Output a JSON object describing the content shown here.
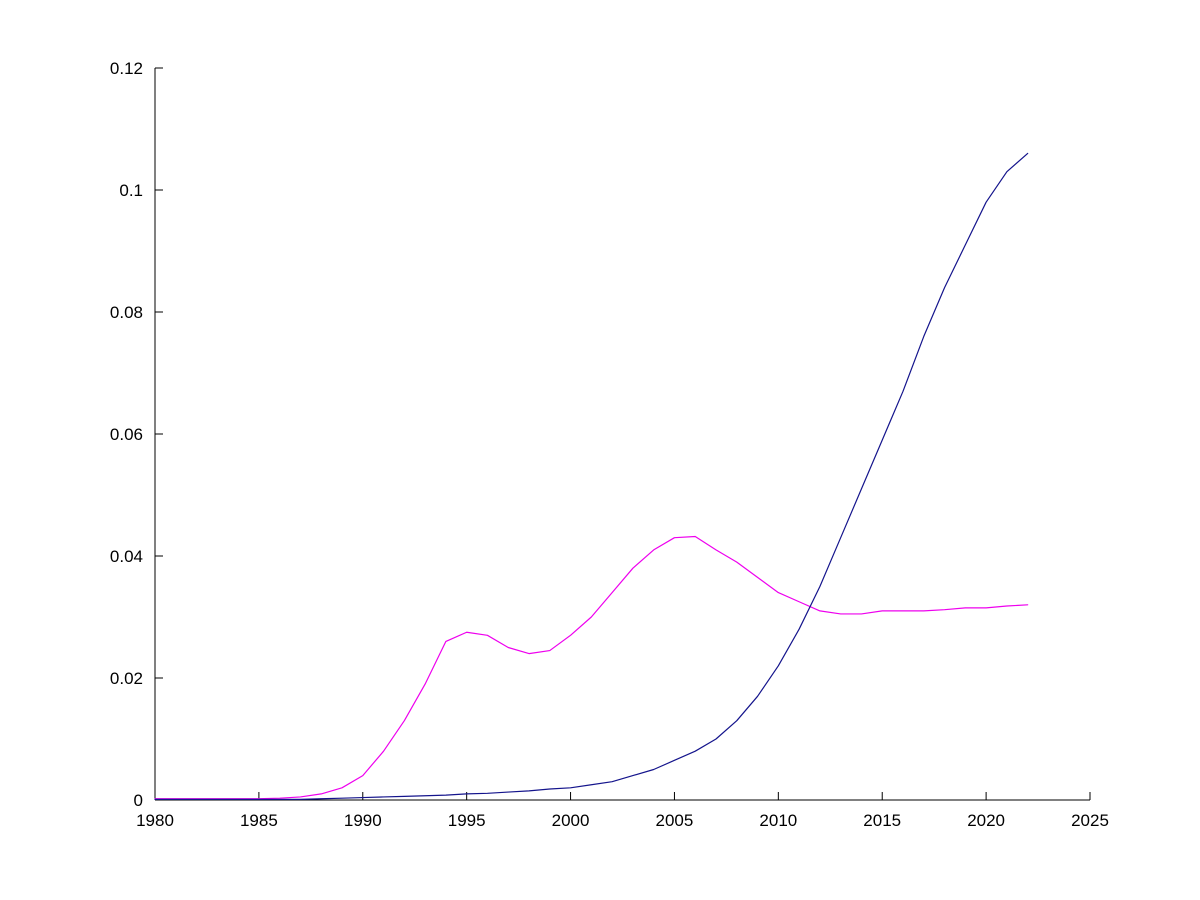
{
  "chart_data": {
    "type": "line",
    "title": "",
    "xlabel": "",
    "ylabel": "",
    "xlim": [
      1980,
      2025
    ],
    "ylim": [
      0,
      0.12
    ],
    "grid": false,
    "legend": "none",
    "xticks": {
      "values": [
        1980,
        1985,
        1990,
        1995,
        2000,
        2005,
        2010,
        2015,
        2020,
        2025
      ],
      "labels": [
        "1980",
        "1985",
        "1990",
        "1995",
        "2000",
        "2005",
        "2010",
        "2015",
        "2020",
        "2025"
      ]
    },
    "yticks": {
      "values": [
        0,
        0.02,
        0.04,
        0.06,
        0.08,
        0.1,
        0.12
      ],
      "labels": [
        "0",
        "0.02",
        "0.04",
        "0.06",
        "0.08",
        "0.1",
        "0.12"
      ]
    },
    "x": [
      1980,
      1981,
      1982,
      1983,
      1984,
      1985,
      1986,
      1987,
      1988,
      1989,
      1990,
      1991,
      1992,
      1993,
      1994,
      1995,
      1996,
      1997,
      1998,
      1999,
      2000,
      2001,
      2002,
      2003,
      2004,
      2005,
      2006,
      2007,
      2008,
      2009,
      2010,
      2011,
      2012,
      2013,
      2014,
      2015,
      2016,
      2017,
      2018,
      2019,
      2020,
      2021,
      2022
    ],
    "series": [
      {
        "name": "magenta-line",
        "color": "#EE00EE",
        "values": [
          0.0002,
          0.0002,
          0.0002,
          0.0002,
          0.0002,
          0.0002,
          0.0003,
          0.0005,
          0.001,
          0.002,
          0.004,
          0.008,
          0.013,
          0.019,
          0.026,
          0.0275,
          0.027,
          0.025,
          0.024,
          0.0245,
          0.027,
          0.03,
          0.034,
          0.038,
          0.041,
          0.043,
          0.0432,
          0.041,
          0.039,
          0.0365,
          0.034,
          0.0325,
          0.031,
          0.0305,
          0.0305,
          0.031,
          0.031,
          0.031,
          0.0312,
          0.0315,
          0.0315,
          0.0318,
          0.032
        ]
      },
      {
        "name": "blue-line",
        "color": "#14148C",
        "values": [
          0.0001,
          0.0001,
          0.0001,
          0.0001,
          0.0001,
          0.0001,
          0.0001,
          0.0001,
          0.0002,
          0.0003,
          0.0004,
          0.0005,
          0.0006,
          0.0007,
          0.0008,
          0.001,
          0.0011,
          0.0013,
          0.0015,
          0.0018,
          0.002,
          0.0025,
          0.003,
          0.004,
          0.005,
          0.0065,
          0.008,
          0.01,
          0.013,
          0.017,
          0.022,
          0.028,
          0.035,
          0.043,
          0.051,
          0.059,
          0.067,
          0.076,
          0.084,
          0.091,
          0.098,
          0.103,
          0.106
        ]
      }
    ]
  }
}
